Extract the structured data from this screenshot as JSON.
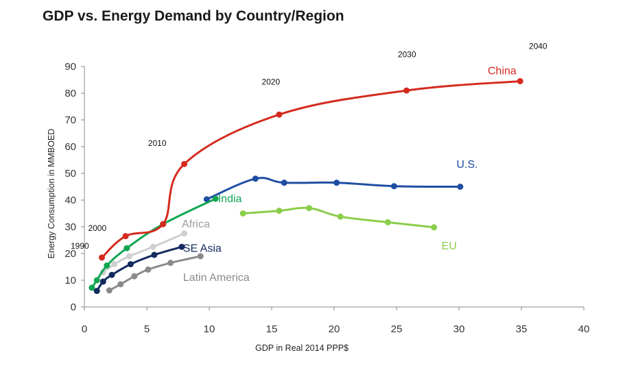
{
  "chart_data": {
    "type": "line",
    "title": "GDP vs. Energy Demand by Country/Region",
    "xlabel": "GDP in Real 2014 PPP$",
    "ylabel": "Energy Consumption in MMBOED",
    "xlim": [
      0,
      40
    ],
    "ylim": [
      0,
      90
    ],
    "xticks": [
      0,
      5,
      10,
      15,
      20,
      25,
      30,
      35,
      40
    ],
    "yticks": [
      0,
      10,
      20,
      30,
      40,
      50,
      60,
      70,
      80,
      90
    ],
    "grid": false,
    "series": [
      {
        "name": "China",
        "color": "#d42a1e",
        "points": [
          [
            1.4,
            18.5
          ],
          [
            3.3,
            26.5
          ],
          [
            6.3,
            31
          ],
          [
            8,
            53.5
          ],
          [
            15.6,
            72
          ],
          [
            25.8,
            81
          ],
          [
            34.9,
            84.5
          ]
        ]
      },
      {
        "name": "U.S.",
        "color": "#1f4ea3",
        "points": [
          [
            9.8,
            40.3
          ],
          [
            13.7,
            48
          ],
          [
            16,
            46.5
          ],
          [
            20.2,
            46.5
          ],
          [
            24.8,
            45.2
          ],
          [
            30.1,
            45
          ]
        ]
      },
      {
        "name": "India",
        "color": "#12a552",
        "points": [
          [
            0.6,
            7.2
          ],
          [
            1,
            10
          ],
          [
            1.8,
            15.5
          ],
          [
            3.4,
            22
          ],
          [
            6.3,
            31
          ],
          [
            10.5,
            40.5
          ]
        ]
      },
      {
        "name": "EU",
        "color": "#8acd4a",
        "points": [
          [
            12.7,
            35
          ],
          [
            15.6,
            36
          ],
          [
            18,
            37
          ],
          [
            20.5,
            33.8
          ],
          [
            24.3,
            31.7
          ],
          [
            28,
            29.8
          ]
        ]
      },
      {
        "name": "Africa",
        "color": "#cfcfcf",
        "points": [
          [
            1.5,
            13
          ],
          [
            2.4,
            16
          ],
          [
            3.6,
            19
          ],
          [
            5.5,
            22.5
          ],
          [
            8,
            27.5
          ]
        ]
      },
      {
        "name": "SE Asia",
        "color": "#132a5e",
        "points": [
          [
            1,
            6
          ],
          [
            1.5,
            9.5
          ],
          [
            2.2,
            12
          ],
          [
            3.7,
            16
          ],
          [
            5.6,
            19.5
          ],
          [
            7.8,
            22.5
          ]
        ]
      },
      {
        "name": "Latin America",
        "color": "#8a8a8a",
        "points": [
          [
            2,
            6.2
          ],
          [
            2.9,
            8.5
          ],
          [
            4,
            11.5
          ],
          [
            5.1,
            14
          ],
          [
            6.9,
            16.5
          ],
          [
            9.3,
            19
          ]
        ]
      }
    ],
    "series_labels": [
      {
        "text": "China",
        "color": "#d42a1e",
        "x": 32.3,
        "y": 87
      },
      {
        "text": "U.S.",
        "color": "#1f4ea3",
        "x": 29.8,
        "y": 52
      },
      {
        "text": "India",
        "color": "#12a552",
        "x": 10.7,
        "y": 39.2
      },
      {
        "text": "EU",
        "color": "#8acd4a",
        "x": 28.6,
        "y": 21.6
      },
      {
        "text": "Africa",
        "color": "#9e9e9e",
        "x": 7.8,
        "y": 29.8
      },
      {
        "text": "SE Asia",
        "color": "#132a5e",
        "x": 7.9,
        "y": 20.7
      },
      {
        "text": "Latin America",
        "color": "#8a8a8a",
        "x": 7.9,
        "y": 9.8
      }
    ],
    "year_annotations": [
      {
        "text": "1990",
        "x": -1.1,
        "y": 21.8
      },
      {
        "text": "2000",
        "x": 0.3,
        "y": 28.5
      },
      {
        "text": "2010",
        "x": 5.1,
        "y": 60.3
      },
      {
        "text": "2020",
        "x": 14.2,
        "y": 83.2
      },
      {
        "text": "2030",
        "x": 25.1,
        "y": 93.4
      },
      {
        "text": "2040",
        "x": 35.6,
        "y": 96.6
      }
    ]
  }
}
